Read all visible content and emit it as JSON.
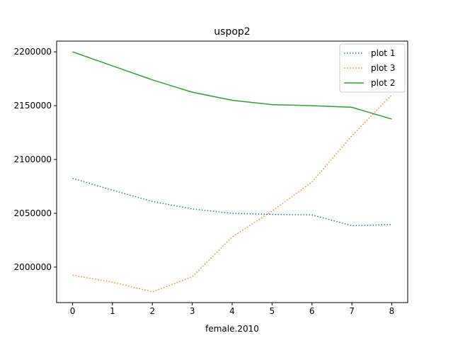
{
  "chart_data": {
    "type": "line",
    "title": "uspop2",
    "xlabel": "female.2010",
    "ylabel": "",
    "x": [
      0,
      1,
      2,
      3,
      4,
      5,
      6,
      7,
      8
    ],
    "xlim": [
      -0.4,
      8.4
    ],
    "ylim": [
      1967000,
      2210000
    ],
    "x_ticks": [
      0,
      1,
      2,
      3,
      4,
      5,
      6,
      7,
      8
    ],
    "y_ticks": [
      2000000,
      2050000,
      2100000,
      2150000,
      2200000
    ],
    "grid": false,
    "legend_position": "top-right",
    "series": [
      {
        "name": "plot 1",
        "color": "#1f77b4",
        "style": "dotted",
        "values": [
          2082500,
          2071500,
          2061000,
          2054000,
          2050000,
          2049000,
          2048500,
          2038500,
          2039500
        ]
      },
      {
        "name": "plot 3",
        "color": "#ff7f0e",
        "style": "dotted",
        "values": [
          1992500,
          1986000,
          1977000,
          1991000,
          2028000,
          2052000,
          2079000,
          2122000,
          2160000
        ]
      },
      {
        "name": "plot 2",
        "color": "#2ca02c",
        "style": "solid",
        "values": [
          2200000,
          2187000,
          2174000,
          2162500,
          2155000,
          2151000,
          2150000,
          2148500,
          2137500
        ]
      }
    ]
  }
}
